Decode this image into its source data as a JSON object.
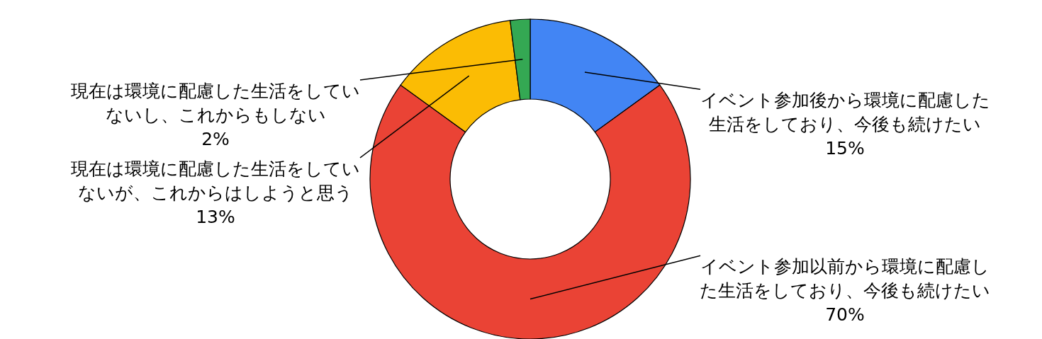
{
  "chart_data": {
    "type": "donut",
    "categories": [
      "イベント参加後から環境に配慮した生活をしており、今後も続けたい",
      "イベント参加以前から環境に配慮した生活をしており、今後も続けたい",
      "現在は環境に配慮した生活をしていないが、これからはしようと思う",
      "現在は環境に配慮した生活をしていないし、これからもしない"
    ],
    "values": [
      15,
      70,
      13,
      2
    ],
    "colors": [
      "#4285f4",
      "#ea4335",
      "#fbbc04",
      "#34a853"
    ],
    "value_labels": [
      "15%",
      "70%",
      "13%",
      "2%"
    ]
  }
}
